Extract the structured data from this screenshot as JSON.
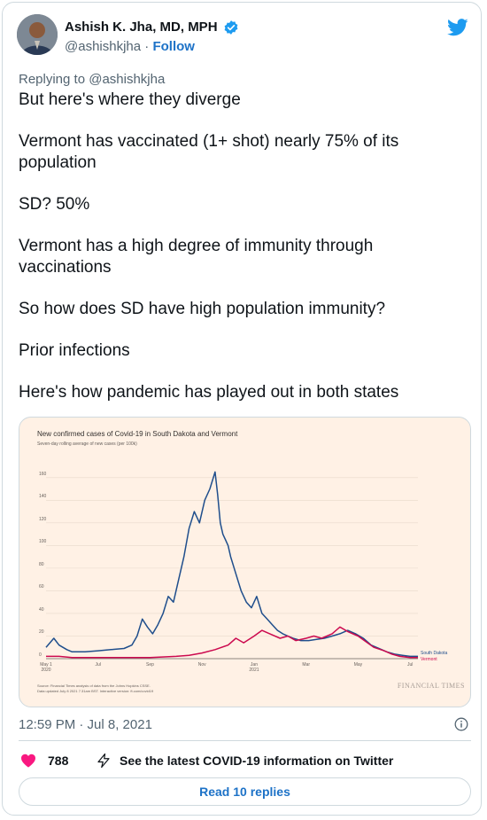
{
  "author": {
    "name": "Ashish K. Jha, MD, MPH",
    "handle": "@ashishkjha",
    "separator": "·",
    "follow_label": "Follow",
    "verified": true
  },
  "reply_to": "Replying to @ashishkjha",
  "tweet_paragraphs": [
    "But here's where they diverge",
    "Vermont has vaccinated (1+ shot) nearly 75% of its population",
    "SD? 50%",
    "Vermont has a high degree of immunity through vaccinations",
    "So how does SD have high population immunity?",
    "Prior infections",
    "Here's how pandemic has played out in both states"
  ],
  "chart_data": {
    "type": "line",
    "title": "New confirmed cases of Covid-19 in South Dakota and Vermont",
    "subtitle": "Seven-day rolling average of new cases (per 100k)",
    "ylim": [
      0,
      170
    ],
    "yticks": [
      "0",
      "20",
      "40",
      "60",
      "80",
      "100",
      "120",
      "140",
      "160"
    ],
    "xticks": [
      {
        "label": "May 1",
        "sub": "2020"
      },
      {
        "label": "Jul",
        "sub": ""
      },
      {
        "label": "Sep",
        "sub": ""
      },
      {
        "label": "Nov",
        "sub": ""
      },
      {
        "label": "Jan",
        "sub": "2021"
      },
      {
        "label": "Mar",
        "sub": ""
      },
      {
        "label": "May",
        "sub": ""
      },
      {
        "label": "Jul",
        "sub": ""
      }
    ],
    "x_months": [
      0,
      2,
      4,
      6,
      8,
      10,
      12,
      14
    ],
    "series": [
      {
        "name": "South Dakota",
        "color": "#1f4e8c",
        "x": [
          0,
          0.3,
          0.5,
          0.8,
          1.0,
          1.5,
          2.0,
          2.5,
          3.0,
          3.3,
          3.5,
          3.7,
          3.9,
          4.1,
          4.3,
          4.5,
          4.7,
          4.9,
          5.1,
          5.3,
          5.5,
          5.7,
          5.9,
          6.1,
          6.3,
          6.5,
          6.6,
          6.7,
          6.8,
          6.9,
          7.0,
          7.1,
          7.3,
          7.5,
          7.7,
          7.9,
          8.1,
          8.3,
          8.5,
          8.7,
          8.9,
          9.1,
          9.3,
          9.5,
          9.8,
          10.1,
          10.4,
          10.7,
          11.0,
          11.3,
          11.6,
          11.9,
          12.2,
          12.5,
          12.8,
          13.1,
          13.4,
          13.7,
          14.0,
          14.3
        ],
        "y": [
          10,
          18,
          12,
          8,
          6,
          6,
          7,
          8,
          9,
          12,
          20,
          35,
          28,
          22,
          30,
          40,
          55,
          50,
          70,
          90,
          115,
          130,
          120,
          140,
          150,
          165,
          145,
          120,
          110,
          105,
          100,
          90,
          75,
          60,
          50,
          45,
          55,
          40,
          35,
          30,
          25,
          22,
          20,
          18,
          16,
          16,
          17,
          18,
          20,
          22,
          25,
          22,
          18,
          12,
          9,
          6,
          4,
          3,
          2,
          2
        ]
      },
      {
        "name": "Vermont",
        "color": "#cc0a4f",
        "x": [
          0,
          0.5,
          1,
          2,
          3,
          4,
          5,
          5.5,
          6,
          6.5,
          7,
          7.3,
          7.6,
          8,
          8.3,
          8.6,
          9,
          9.3,
          9.6,
          10,
          10.3,
          10.6,
          11,
          11.3,
          11.6,
          12,
          12.3,
          12.6,
          13,
          13.3,
          13.6,
          14,
          14.3
        ],
        "y": [
          2,
          2,
          1,
          1,
          1,
          1,
          2,
          3,
          5,
          8,
          12,
          18,
          14,
          20,
          25,
          22,
          18,
          20,
          16,
          18,
          20,
          18,
          22,
          28,
          24,
          20,
          15,
          10,
          7,
          4,
          2,
          1,
          1
        ]
      }
    ],
    "source_lines": [
      "Source: Financial Times analysis of data from the Johns Hopkins CSSE.",
      "Data updated July 8 2021 7.31am BST. Interactive version: ft.com/covid19"
    ],
    "brand": "FINANCIAL TIMES"
  },
  "meta": {
    "timestamp": "12:59 PM · Jul 8, 2021"
  },
  "actions": {
    "like_count": "788",
    "covid_link": "See the latest COVID-19 information on Twitter"
  },
  "read_replies": "Read 10 replies"
}
